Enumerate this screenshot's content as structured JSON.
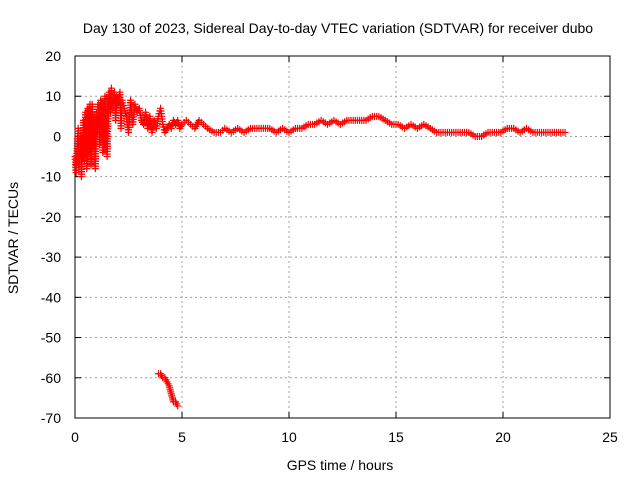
{
  "chart_data": {
    "type": "scatter",
    "title": "Day 130 of 2023, Sidereal Day-to-day VTEC variation (SDTVAR) for receiver dubo",
    "xlabel": "GPS time / hours",
    "ylabel": "SDTVAR / TECUs",
    "xlim": [
      0,
      25
    ],
    "ylim": [
      -70,
      20
    ],
    "xticks": [
      0,
      5,
      10,
      15,
      20,
      25
    ],
    "yticks": [
      -70,
      -60,
      -50,
      -40,
      -30,
      -20,
      -10,
      0,
      10,
      20
    ],
    "grid": true,
    "marker": "+",
    "color": "#ff0000",
    "series": [
      {
        "name": "main",
        "points": [
          [
            0.0,
            -5
          ],
          [
            0.05,
            -9
          ],
          [
            0.1,
            -3
          ],
          [
            0.15,
            2
          ],
          [
            0.2,
            -7
          ],
          [
            0.25,
            0
          ],
          [
            0.3,
            -10
          ],
          [
            0.35,
            -2
          ],
          [
            0.4,
            4
          ],
          [
            0.45,
            -6
          ],
          [
            0.5,
            6
          ],
          [
            0.55,
            -8
          ],
          [
            0.6,
            7
          ],
          [
            0.65,
            -4
          ],
          [
            0.7,
            8
          ],
          [
            0.75,
            -7
          ],
          [
            0.8,
            8
          ],
          [
            0.85,
            -3
          ],
          [
            0.9,
            5
          ],
          [
            0.95,
            -8
          ],
          [
            1.0,
            6
          ],
          [
            1.05,
            1
          ],
          [
            1.1,
            8
          ],
          [
            1.15,
            -2
          ],
          [
            1.2,
            9
          ],
          [
            1.25,
            2
          ],
          [
            1.3,
            -4
          ],
          [
            1.35,
            3
          ],
          [
            1.4,
            10
          ],
          [
            1.45,
            4
          ],
          [
            1.5,
            -5
          ],
          [
            1.55,
            5
          ],
          [
            1.6,
            11
          ],
          [
            1.65,
            6
          ],
          [
            1.7,
            12
          ],
          [
            1.75,
            7
          ],
          [
            1.8,
            9
          ],
          [
            1.85,
            11
          ],
          [
            1.9,
            4
          ],
          [
            1.95,
            10
          ],
          [
            2.0,
            8
          ],
          [
            2.1,
            11
          ],
          [
            2.15,
            2
          ],
          [
            2.2,
            9
          ],
          [
            2.3,
            7
          ],
          [
            2.4,
            5
          ],
          [
            2.5,
            1
          ],
          [
            2.6,
            9
          ],
          [
            2.7,
            3
          ],
          [
            2.8,
            8
          ],
          [
            2.9,
            6
          ],
          [
            3.0,
            7
          ],
          [
            3.1,
            4
          ],
          [
            3.2,
            3
          ],
          [
            3.3,
            6
          ],
          [
            3.4,
            2
          ],
          [
            3.5,
            5
          ],
          [
            3.6,
            1
          ],
          [
            3.7,
            4
          ],
          [
            3.8,
            2
          ],
          [
            3.9,
            5
          ],
          [
            4.0,
            7
          ],
          [
            4.1,
            3
          ],
          [
            4.2,
            1
          ],
          [
            4.3,
            2
          ],
          [
            4.4,
            3
          ],
          [
            4.5,
            2
          ],
          [
            4.6,
            4
          ],
          [
            4.7,
            3
          ],
          [
            4.8,
            4
          ],
          [
            4.9,
            2
          ],
          [
            5.0,
            3
          ],
          [
            5.2,
            4
          ],
          [
            5.4,
            3
          ],
          [
            5.6,
            2
          ],
          [
            5.8,
            4
          ],
          [
            6.0,
            3
          ],
          [
            6.2,
            2
          ],
          [
            6.5,
            1
          ],
          [
            6.8,
            1
          ],
          [
            7.0,
            2
          ],
          [
            7.3,
            1
          ],
          [
            7.6,
            2
          ],
          [
            7.9,
            1
          ],
          [
            8.2,
            2
          ],
          [
            8.5,
            2
          ],
          [
            8.8,
            2
          ],
          [
            9.1,
            2
          ],
          [
            9.4,
            1
          ],
          [
            9.7,
            2
          ],
          [
            10.0,
            1
          ],
          [
            10.3,
            2
          ],
          [
            10.6,
            2
          ],
          [
            10.9,
            3
          ],
          [
            11.2,
            3
          ],
          [
            11.5,
            4
          ],
          [
            11.8,
            3
          ],
          [
            12.1,
            4
          ],
          [
            12.4,
            3
          ],
          [
            12.7,
            4
          ],
          [
            13.0,
            4
          ],
          [
            13.3,
            4
          ],
          [
            13.6,
            4
          ],
          [
            13.9,
            5
          ],
          [
            14.2,
            5
          ],
          [
            14.5,
            4
          ],
          [
            14.8,
            3
          ],
          [
            15.1,
            3
          ],
          [
            15.4,
            2
          ],
          [
            15.7,
            3
          ],
          [
            16.0,
            2
          ],
          [
            16.3,
            3
          ],
          [
            16.6,
            2
          ],
          [
            16.9,
            1
          ],
          [
            17.2,
            1
          ],
          [
            17.5,
            1
          ],
          [
            17.8,
            1
          ],
          [
            18.1,
            1
          ],
          [
            18.4,
            1
          ],
          [
            18.7,
            0
          ],
          [
            19.0,
            0
          ],
          [
            19.3,
            1
          ],
          [
            19.6,
            1
          ],
          [
            19.9,
            1
          ],
          [
            20.2,
            2
          ],
          [
            20.5,
            2
          ],
          [
            20.8,
            1
          ],
          [
            21.1,
            2
          ],
          [
            21.4,
            1
          ],
          [
            21.7,
            1
          ],
          [
            22.0,
            1
          ],
          [
            22.3,
            1
          ],
          [
            22.6,
            1
          ],
          [
            22.9,
            1
          ]
        ]
      },
      {
        "name": "outlier segment",
        "points": [
          [
            3.9,
            -59
          ],
          [
            4.0,
            -59
          ],
          [
            4.1,
            -60
          ],
          [
            4.2,
            -60
          ],
          [
            4.3,
            -61
          ],
          [
            4.4,
            -62
          ],
          [
            4.45,
            -63
          ],
          [
            4.5,
            -64
          ],
          [
            4.55,
            -65
          ],
          [
            4.6,
            -66
          ],
          [
            4.7,
            -66
          ],
          [
            4.8,
            -67
          ]
        ]
      }
    ]
  }
}
